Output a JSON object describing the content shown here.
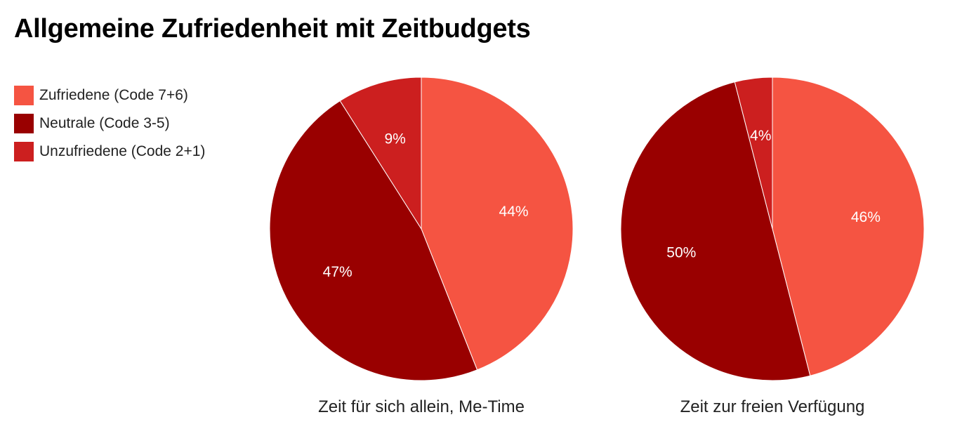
{
  "title": "Allgemeine Zufriedenheit mit Zeitbudgets",
  "legend": [
    {
      "label": "Zufriedene (Code 7+6)",
      "color": "#f55442"
    },
    {
      "label": "Neutrale (Code 3-5)",
      "color": "#990000"
    },
    {
      "label": "Unzufriedene (Code 2+1)",
      "color": "#cc1f1f"
    }
  ],
  "chart_data": [
    {
      "type": "pie",
      "label": "Zeit für sich allein, Me-Time",
      "categories": [
        "Zufriedene (Code 7+6)",
        "Neutrale (Code 3-5)",
        "Unzufriedene (Code 2+1)"
      ],
      "values": [
        44,
        47,
        9
      ],
      "value_labels": [
        "44%",
        "47%",
        "9%"
      ]
    },
    {
      "type": "pie",
      "label": "Zeit zur freien Verfügung",
      "categories": [
        "Zufriedene (Code 7+6)",
        "Neutrale (Code 3-5)",
        "Unzufriedene (Code 2+1)"
      ],
      "values": [
        46,
        50,
        4
      ],
      "value_labels": [
        "46%",
        "50%",
        "4%"
      ]
    }
  ]
}
